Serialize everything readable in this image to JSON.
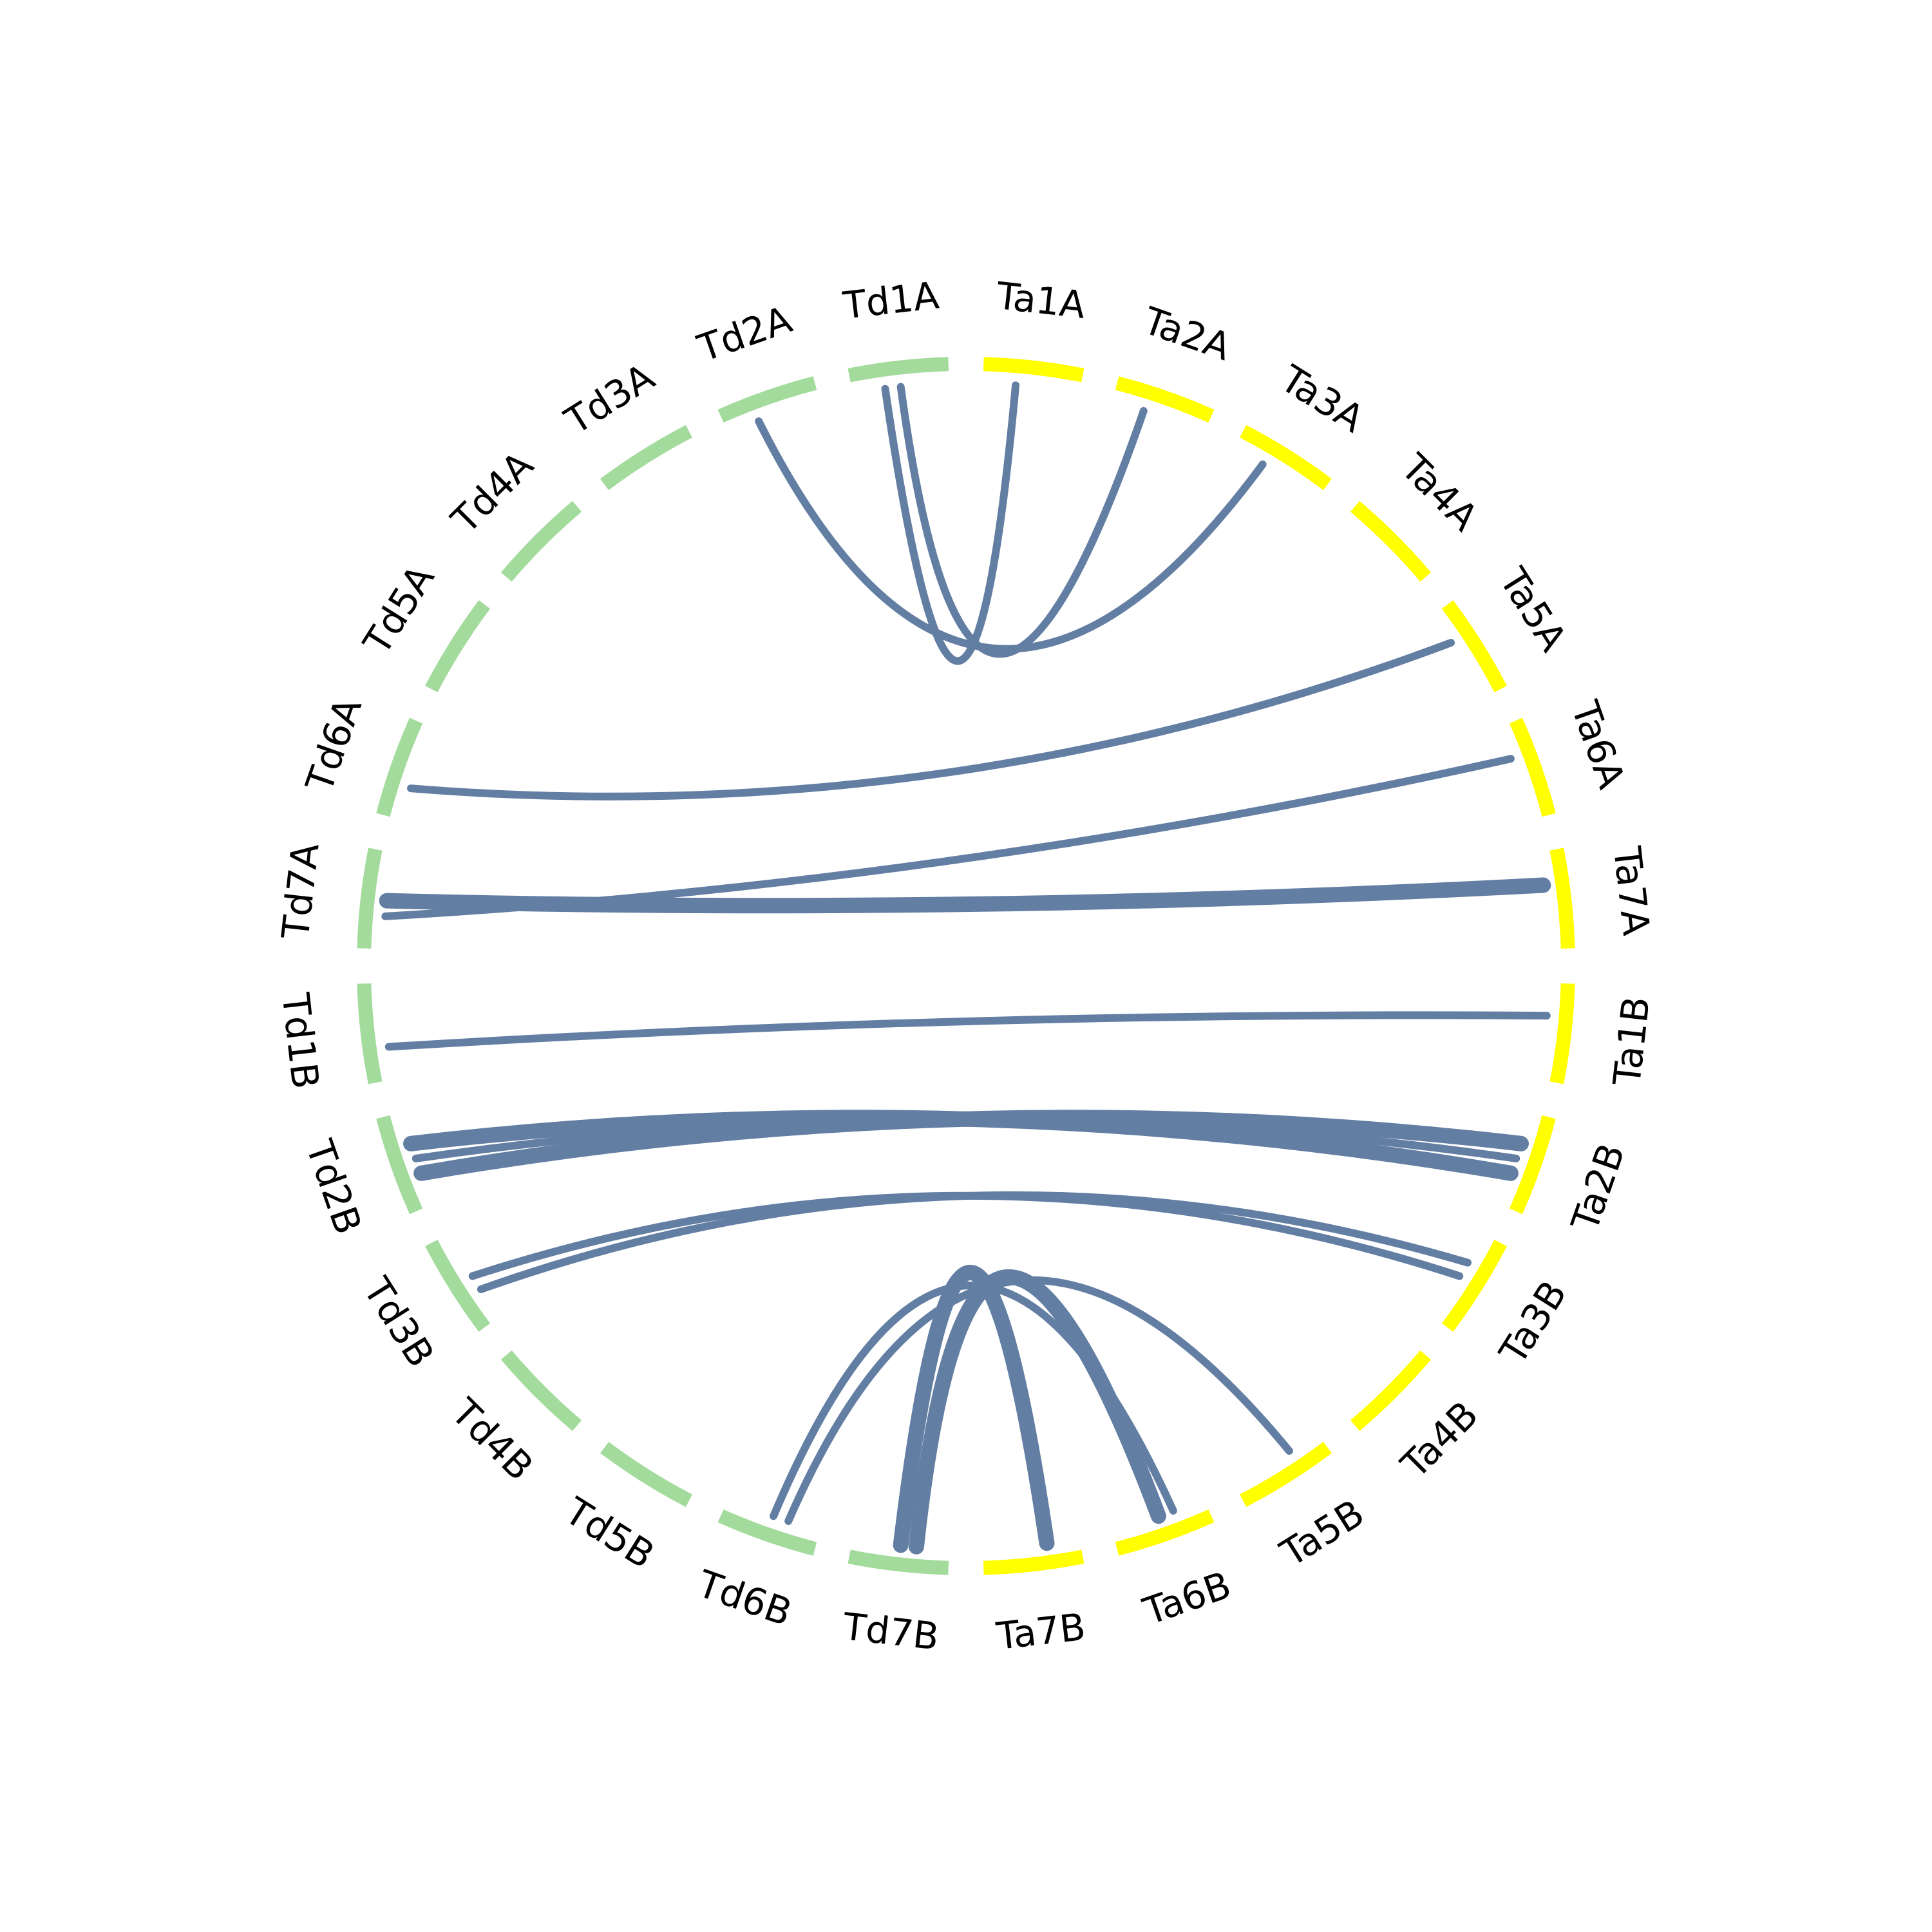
{
  "chart_data": {
    "type": "chord",
    "colors": {
      "Td": "#a3db9c",
      "Ta": "#ffff00",
      "link": "#637ea3"
    },
    "segments": [
      {
        "id": "Ta1A",
        "label": "Ta1A",
        "group": "Ta"
      },
      {
        "id": "Ta2A",
        "label": "Ta2A",
        "group": "Ta"
      },
      {
        "id": "Ta3A",
        "label": "Ta3A",
        "group": "Ta"
      },
      {
        "id": "Ta4A",
        "label": "Ta4A",
        "group": "Ta"
      },
      {
        "id": "Ta5A",
        "label": "Ta5A",
        "group": "Ta"
      },
      {
        "id": "Ta6A",
        "label": "Ta6A",
        "group": "Ta"
      },
      {
        "id": "Ta7A",
        "label": "Ta7A",
        "group": "Ta"
      },
      {
        "id": "Ta1B",
        "label": "Ta1B",
        "group": "Ta"
      },
      {
        "id": "Ta2B",
        "label": "Ta2B",
        "group": "Ta"
      },
      {
        "id": "Ta3B",
        "label": "Ta3B",
        "group": "Ta"
      },
      {
        "id": "Ta4B",
        "label": "Ta4B",
        "group": "Ta"
      },
      {
        "id": "Ta5B",
        "label": "Ta5B",
        "group": "Ta"
      },
      {
        "id": "Ta6B",
        "label": "Ta6B",
        "group": "Ta"
      },
      {
        "id": "Ta7B",
        "label": "Ta7B",
        "group": "Ta"
      },
      {
        "id": "Td7B",
        "label": "Td7B",
        "group": "Td"
      },
      {
        "id": "Td6B",
        "label": "Td6B",
        "group": "Td"
      },
      {
        "id": "Td5B",
        "label": "Td5B",
        "group": "Td"
      },
      {
        "id": "Td4B",
        "label": "Td4B",
        "group": "Td"
      },
      {
        "id": "Td3B",
        "label": "Td3B",
        "group": "Td"
      },
      {
        "id": "Td2B",
        "label": "Td2B",
        "group": "Td"
      },
      {
        "id": "Td1B",
        "label": "Td1B",
        "group": "Td"
      },
      {
        "id": "Td7A",
        "label": "Td7A",
        "group": "Td"
      },
      {
        "id": "Td6A",
        "label": "Td6A",
        "group": "Td"
      },
      {
        "id": "Td5A",
        "label": "Td5A",
        "group": "Td"
      },
      {
        "id": "Td4A",
        "label": "Td4A",
        "group": "Td"
      },
      {
        "id": "Td3A",
        "label": "Td3A",
        "group": "Td"
      },
      {
        "id": "Td2A",
        "label": "Td2A",
        "group": "Td"
      },
      {
        "id": "Td1A",
        "label": "Td1A",
        "group": "Td"
      }
    ],
    "links": [
      {
        "source": "Td1A",
        "target": "Ta1A",
        "weight": 1
      },
      {
        "source": "Td1A",
        "target": "Ta2A",
        "weight": 1
      },
      {
        "source": "Td2A",
        "target": "Ta3A",
        "weight": 1
      },
      {
        "source": "Td6A",
        "target": "Ta5A",
        "weight": 1
      },
      {
        "source": "Td7A",
        "target": "Ta6A",
        "weight": 1
      },
      {
        "source": "Td7A",
        "target": "Ta7A",
        "weight": 2
      },
      {
        "source": "Td1B",
        "target": "Ta1B",
        "weight": 1
      },
      {
        "source": "Td2B",
        "target": "Ta2B",
        "weight": 2
      },
      {
        "source": "Td2B",
        "target": "Ta2B",
        "weight": 1
      },
      {
        "source": "Td2B",
        "target": "Ta2B",
        "weight": 2
      },
      {
        "source": "Td3B",
        "target": "Ta3B",
        "weight": 1
      },
      {
        "source": "Td3B",
        "target": "Ta3B",
        "weight": 1
      },
      {
        "source": "Td6B",
        "target": "Ta5B",
        "weight": 1
      },
      {
        "source": "Td6B",
        "target": "Ta6B",
        "weight": 1
      },
      {
        "source": "Td7B",
        "target": "Ta6B",
        "weight": 2
      },
      {
        "source": "Td7B",
        "target": "Ta7B",
        "weight": 2
      }
    ]
  }
}
